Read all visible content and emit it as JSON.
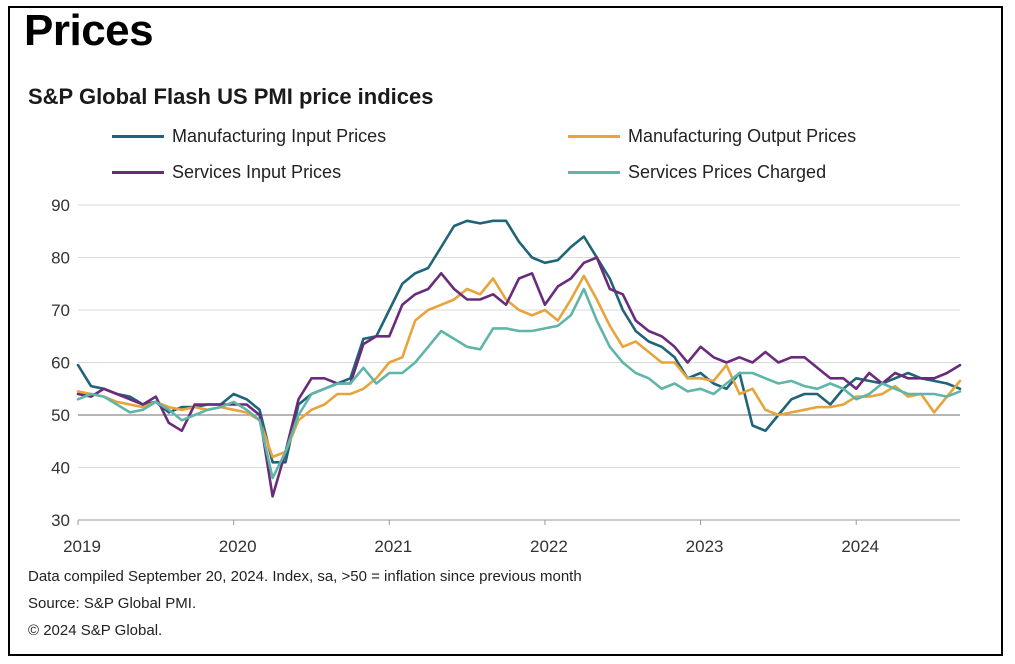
{
  "header": {
    "title": "Prices",
    "subtitle": "S&P Global Flash US PMI price indices"
  },
  "footnotes": [
    "Data compiled September 20, 2024. Index, sa, >50 = inflation since previous month",
    "Source: S&P Global PMI.",
    "© 2024 S&P Global."
  ],
  "chart_data": {
    "type": "line",
    "title": "S&P Global Flash US PMI price indices",
    "xlabel": "",
    "ylabel": "",
    "ylim": [
      30,
      90
    ],
    "yticks": [
      30,
      40,
      50,
      60,
      70,
      80,
      90
    ],
    "xlim": [
      "2019-01",
      "2024-09"
    ],
    "xtick_labels": [
      "2019",
      "2020",
      "2021",
      "2022",
      "2023",
      "2024"
    ],
    "reference_line": 50,
    "grid": true,
    "legend_position": "top",
    "x": [
      "2019-01",
      "2019-02",
      "2019-03",
      "2019-04",
      "2019-05",
      "2019-06",
      "2019-07",
      "2019-08",
      "2019-09",
      "2019-10",
      "2019-11",
      "2019-12",
      "2020-01",
      "2020-02",
      "2020-03",
      "2020-04",
      "2020-05",
      "2020-06",
      "2020-07",
      "2020-08",
      "2020-09",
      "2020-10",
      "2020-11",
      "2020-12",
      "2021-01",
      "2021-02",
      "2021-03",
      "2021-04",
      "2021-05",
      "2021-06",
      "2021-07",
      "2021-08",
      "2021-09",
      "2021-10",
      "2021-11",
      "2021-12",
      "2022-01",
      "2022-02",
      "2022-03",
      "2022-04",
      "2022-05",
      "2022-06",
      "2022-07",
      "2022-08",
      "2022-09",
      "2022-10",
      "2022-11",
      "2022-12",
      "2023-01",
      "2023-02",
      "2023-03",
      "2023-04",
      "2023-05",
      "2023-06",
      "2023-07",
      "2023-08",
      "2023-09",
      "2023-10",
      "2023-11",
      "2023-12",
      "2024-01",
      "2024-02",
      "2024-03",
      "2024-04",
      "2024-05",
      "2024-06",
      "2024-07",
      "2024-08",
      "2024-09"
    ],
    "series": [
      {
        "name": "Manufacturing Input Prices",
        "color": "#1f6478",
        "values": [
          59.5,
          55.5,
          55,
          54,
          53.5,
          52,
          52.5,
          50.5,
          51.5,
          51.5,
          52,
          52,
          54,
          53,
          51,
          41,
          41,
          52,
          54,
          55,
          56,
          57,
          64.5,
          65,
          70,
          75,
          77,
          78,
          82,
          86,
          87,
          86.5,
          87,
          87,
          83,
          80,
          79,
          79.5,
          82,
          84,
          80,
          76,
          70,
          66,
          64,
          63,
          61,
          57,
          58,
          56,
          55,
          58,
          48,
          47,
          50,
          53,
          54,
          54,
          52,
          55,
          57,
          56.5,
          56,
          57,
          58,
          57,
          56.5,
          56,
          55
        ]
      },
      {
        "name": "Manufacturing Output Prices",
        "color": "#e8a33a",
        "values": [
          54.5,
          54,
          53.5,
          52.5,
          52,
          51.5,
          52.5,
          51.5,
          51,
          51.5,
          51,
          51.5,
          51,
          50.5,
          49,
          42,
          43,
          49,
          51,
          52,
          54,
          54,
          55,
          57,
          60,
          61,
          68,
          70,
          71,
          72,
          74,
          73,
          76,
          72,
          70,
          69,
          70,
          68,
          72,
          76.5,
          72,
          67,
          63,
          64,
          62,
          60,
          60,
          57,
          57,
          56.5,
          59.5,
          54,
          55,
          51,
          50,
          50.5,
          51,
          51.5,
          51.5,
          52,
          53.5,
          53.5,
          54,
          55.5,
          53.5,
          54,
          50.5,
          53.5,
          56.5
        ]
      },
      {
        "name": "Services Input Prices",
        "color": "#6a2c7a",
        "values": [
          54,
          53.5,
          55,
          54,
          53,
          52,
          53.5,
          48.5,
          47,
          52,
          52,
          52,
          52,
          52,
          50,
          34.5,
          43,
          53,
          57,
          57,
          56,
          56,
          63.5,
          65,
          65,
          71,
          73,
          74,
          77,
          74,
          72,
          72,
          73,
          71,
          76,
          77,
          71,
          74.5,
          76,
          79,
          80,
          74,
          73,
          68,
          66,
          65,
          63,
          60,
          63,
          61,
          60,
          61,
          60,
          62,
          60,
          61,
          61,
          59,
          57,
          57,
          55,
          58,
          56,
          58,
          57,
          57,
          57,
          58,
          59.5
        ]
      },
      {
        "name": "Services Prices Charged",
        "color": "#5fb6a8",
        "values": [
          53,
          54,
          53.5,
          52,
          50.5,
          51,
          52.5,
          51,
          49,
          50,
          51,
          51.5,
          52.5,
          51,
          49,
          38,
          43,
          50,
          54,
          55,
          56,
          56,
          59,
          56,
          58,
          58,
          60,
          63,
          66,
          64.5,
          63,
          62.5,
          66.5,
          66.5,
          66,
          66,
          66.5,
          67,
          69,
          74,
          68,
          63,
          60,
          58,
          57,
          55,
          56,
          54.5,
          55,
          54,
          56,
          58,
          58,
          57,
          56,
          56.5,
          55.5,
          55,
          56,
          55,
          53,
          54,
          56,
          55,
          54,
          54,
          54,
          53.5,
          54.5
        ]
      }
    ]
  }
}
